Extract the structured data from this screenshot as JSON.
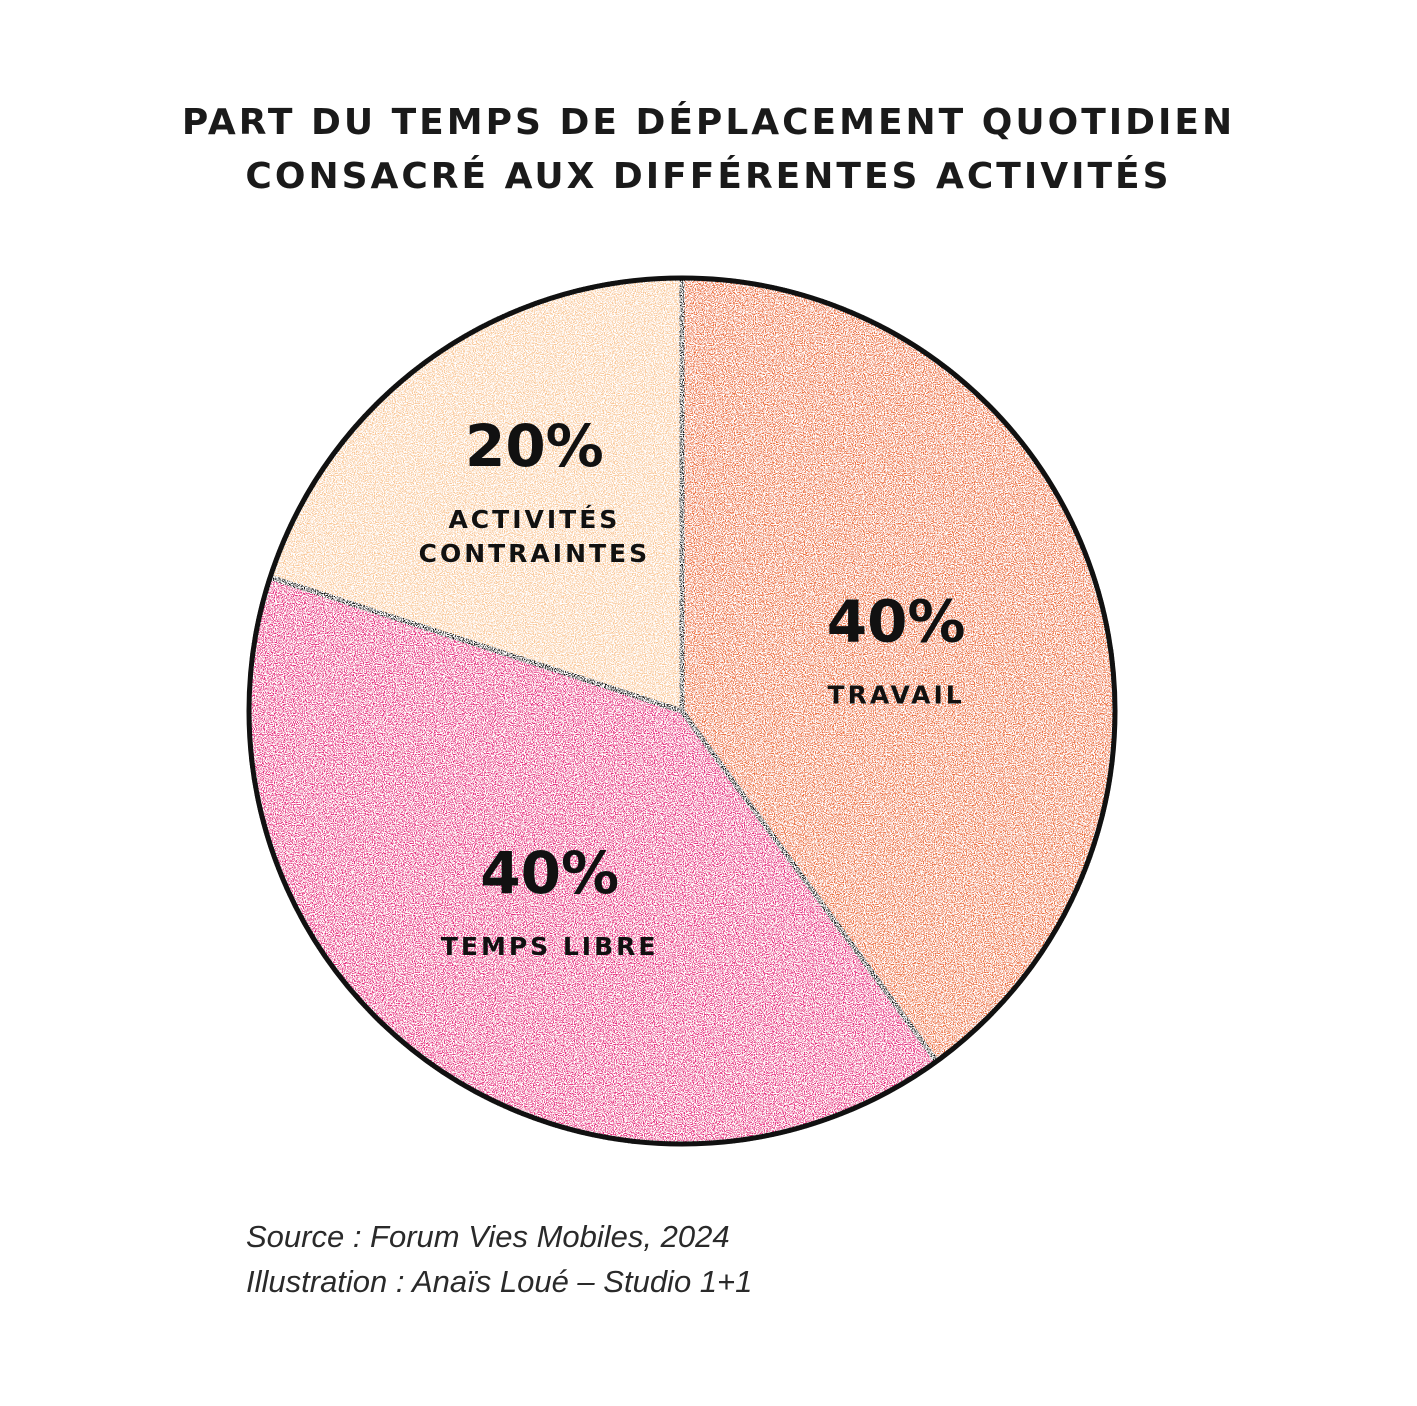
{
  "chart_data": {
    "type": "pie",
    "title": [
      "PART DU TEMPS DE DÉPLACEMENT QUOTIDIEN",
      "CONSACRÉ AUX DIFFÉRENTES ACTIVITÉS"
    ],
    "start_angle_deg": 0,
    "direction": "clockwise",
    "slices": [
      {
        "label": "TRAVAIL",
        "value": 40,
        "value_label": "40%",
        "color": "#ec6e3a"
      },
      {
        "label": "TEMPS LIBRE",
        "value": 40,
        "value_label": "40%",
        "color": "#e72a7f"
      },
      {
        "label": "ACTIVITÉS CONTRAINTES",
        "value": 20,
        "value_label": "20%",
        "color": "#f9c796",
        "label_lines": [
          "ACTIVITÉS",
          "CONTRAINTES"
        ]
      }
    ],
    "legend": "none",
    "grid": false
  },
  "footer": {
    "source": "Source : Forum Vies Mobiles, 2024",
    "illustration": "Illustration : Anaïs Loué – Studio 1+1"
  }
}
